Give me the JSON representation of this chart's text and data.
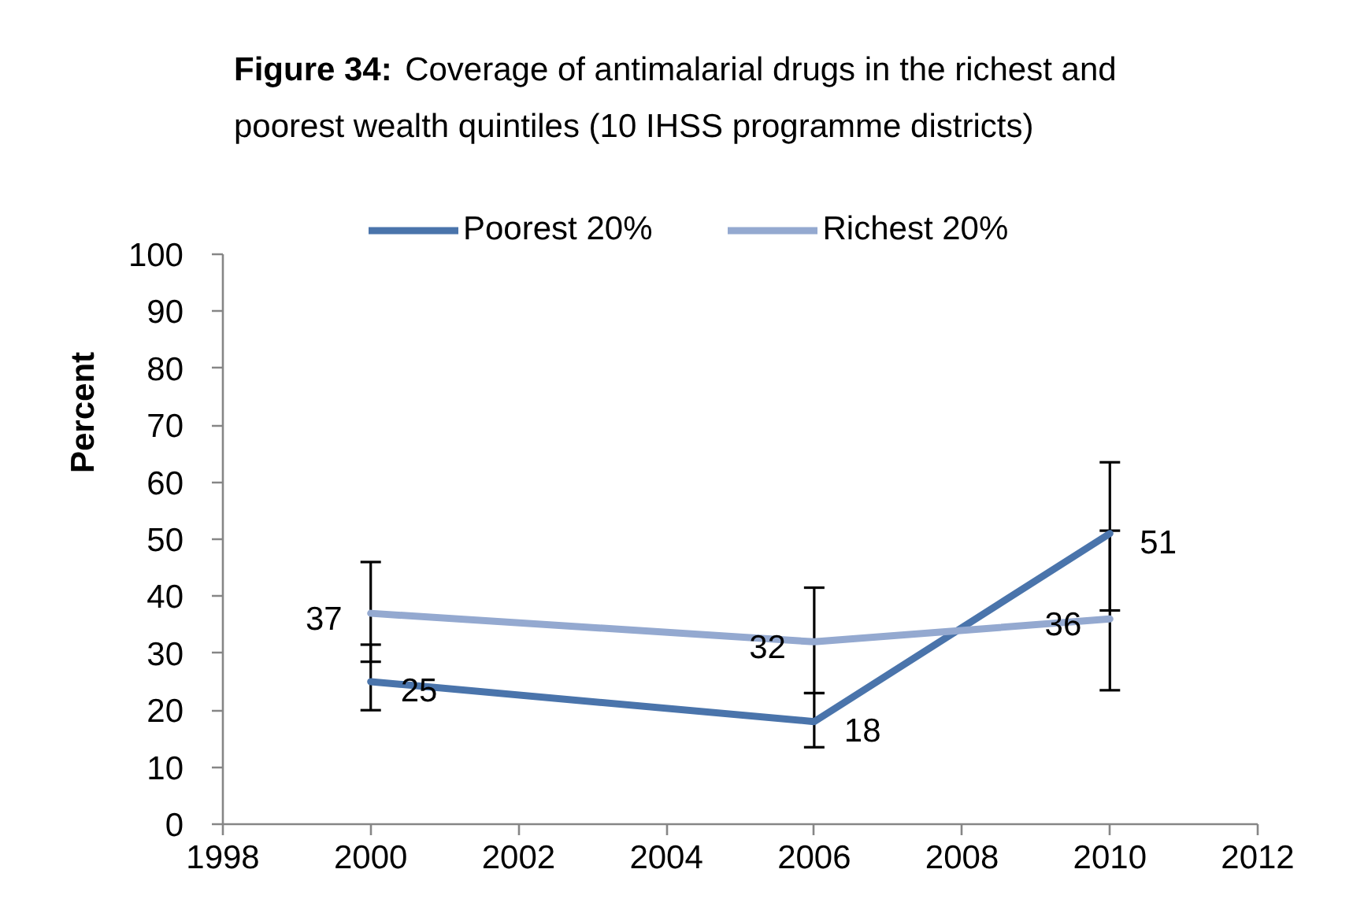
{
  "chart_data": {
    "type": "line",
    "title": "Figure 34: Coverage of antimalarial drugs in the richest and poorest wealth quintiles (10 IHSS programme districts)",
    "ylabel": "Percent",
    "x": [
      2000,
      2006,
      2010
    ],
    "series": [
      {
        "name": "Poorest 20%",
        "color": "#4a74ab",
        "values": [
          25,
          18,
          51
        ],
        "errors": [
          [
            20,
            31.5
          ],
          [
            13.5,
            23
          ],
          [
            37.5,
            63.5
          ]
        ]
      },
      {
        "name": "Richest 20%",
        "color": "#94a9d0",
        "values": [
          37,
          32,
          36
        ],
        "errors": [
          [
            28.5,
            46
          ],
          [
            23,
            41.5
          ],
          [
            23.5,
            51.5
          ]
        ]
      }
    ],
    "xlim": [
      1998,
      2012
    ],
    "xticks": [
      1998,
      2000,
      2002,
      2004,
      2006,
      2008,
      2010,
      2012
    ],
    "ylim": [
      0,
      100
    ],
    "yticks": [
      0,
      10,
      20,
      30,
      40,
      50,
      60,
      70,
      80,
      90,
      100
    ],
    "legend": "top",
    "data_labels": true
  }
}
